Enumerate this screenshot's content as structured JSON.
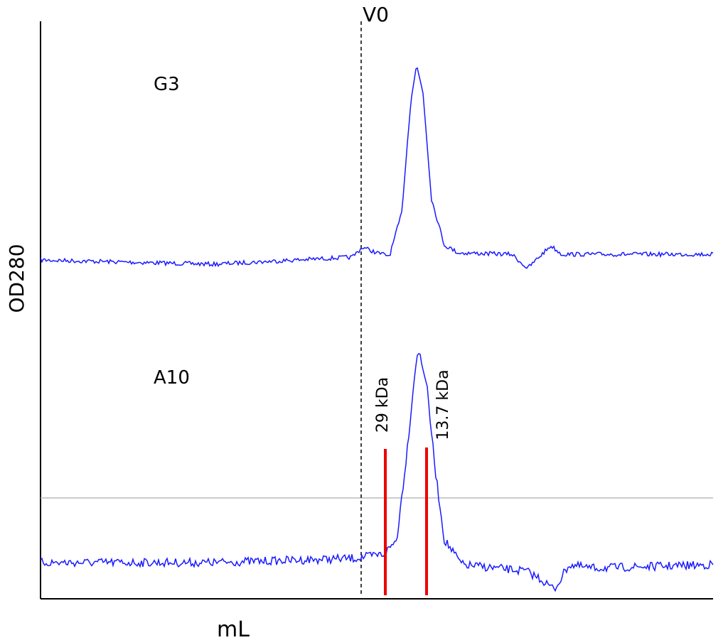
{
  "chart_data": {
    "type": "chromatogram",
    "xlabel": "mL",
    "ylabel": "OD280",
    "void_label": "V0",
    "traces": [
      "G3",
      "A10"
    ],
    "markers": [
      "29 kDa",
      "13.7 kDa"
    ]
  }
}
